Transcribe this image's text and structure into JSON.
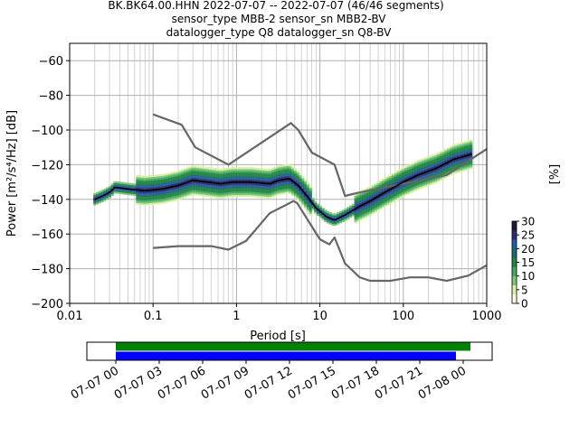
{
  "header": {
    "line1": "BK.BK64.00.HHN   2022-07-07 -- 2022-07-07  (46/46 segments)",
    "line2": "sensor_type MBB-2 sensor_sn MBB2-BV",
    "line3": "datalogger_type Q8 datalogger_sn Q8-BV"
  },
  "chart_data": [
    {
      "type": "heatmap",
      "xlabel": "Period [s]",
      "ylabel": "Power [m²/s⁴/Hz] [dB]",
      "x_scale": "log",
      "xlim": [
        0.01,
        1000
      ],
      "ylim": [
        -200,
        -50
      ],
      "xticks": [
        0.01,
        0.1,
        1,
        10,
        100,
        1000
      ],
      "xtick_labels": [
        "0.01",
        "0.1",
        "1",
        "10",
        "100",
        "1000"
      ],
      "yticks": [
        -60,
        -80,
        -100,
        -120,
        -140,
        -160,
        -180,
        -200
      ],
      "grid": true,
      "series": [
        {
          "name": "",
          "color": "#666666",
          "points": [
            [
              0.1,
              -91
            ],
            [
              0.22,
              -97
            ],
            [
              0.32,
              -110
            ],
            [
              0.8,
              -120
            ],
            [
              4.5,
              -96
            ],
            [
              5.5,
              -100
            ],
            [
              8,
              -113
            ],
            [
              15,
              -120
            ],
            [
              20,
              -138
            ],
            [
              30,
              -136
            ],
            [
              330,
              -126
            ],
            [
              1000,
              -111
            ]
          ]
        },
        {
          "name": "",
          "color": "#666666",
          "points": [
            [
              0.1,
              -168
            ],
            [
              0.2,
              -167
            ],
            [
              0.5,
              -167
            ],
            [
              0.8,
              -169
            ],
            [
              1.3,
              -164
            ],
            [
              2.5,
              -148
            ],
            [
              4,
              -143
            ],
            [
              4.8,
              -141
            ],
            [
              5.3,
              -142
            ],
            [
              10,
              -163
            ],
            [
              13,
              -166
            ],
            [
              15,
              -162
            ],
            [
              20,
              -177
            ],
            [
              30,
              -185
            ],
            [
              40,
              -187
            ],
            [
              70,
              -187
            ],
            [
              120,
              -185
            ],
            [
              200,
              -185
            ],
            [
              330,
              -187
            ],
            [
              600,
              -184
            ],
            [
              1000,
              -178
            ]
          ]
        },
        {
          "name": "",
          "color": "#000000",
          "points": [
            [
              0.02,
              -140
            ],
            [
              0.025,
              -138
            ],
            [
              0.03,
              -136
            ],
            [
              0.035,
              -133
            ],
            [
              0.05,
              -134
            ],
            [
              0.08,
              -135
            ],
            [
              0.13,
              -134
            ],
            [
              0.2,
              -132
            ],
            [
              0.3,
              -129
            ],
            [
              0.45,
              -130
            ],
            [
              0.65,
              -131
            ],
            [
              0.9,
              -130
            ],
            [
              1.5,
              -130
            ],
            [
              2.5,
              -131
            ],
            [
              3.2,
              -129
            ],
            [
              4.3,
              -128
            ],
            [
              5.5,
              -132
            ],
            [
              7,
              -138
            ],
            [
              9,
              -145
            ],
            [
              12,
              -150
            ],
            [
              15,
              -152
            ],
            [
              20,
              -149
            ],
            [
              30,
              -144
            ],
            [
              40,
              -141
            ],
            [
              60,
              -136
            ],
            [
              100,
              -130
            ],
            [
              150,
              -126
            ],
            [
              250,
              -122
            ],
            [
              400,
              -117
            ],
            [
              650,
              -114
            ]
          ]
        }
      ],
      "colorbar": {
        "label": "[%]",
        "min": 0,
        "max": 30,
        "ticks": [
          0,
          5,
          10,
          15,
          20,
          25,
          30
        ],
        "colors": [
          "#ffffe5",
          "#d9f0a3",
          "#78c679",
          "#41ab5d",
          "#238443",
          "#1d6c6c",
          "#225ea8",
          "#2d2d6e",
          "#1a1a3a"
        ]
      }
    },
    {
      "type": "bar",
      "title": "",
      "x_type": "time",
      "xlim": [
        "2022-07-06 22:00",
        "2022-07-08 02:00"
      ],
      "xtick_labels": [
        "07-07 00",
        "07-07 03",
        "07-07 06",
        "07-07 09",
        "07-07 12",
        "07-07 15",
        "07-07 18",
        "07-07 21",
        "07-08 00"
      ],
      "series": [
        {
          "color": "#008000",
          "start": "2022-07-07 00:00",
          "end": "2022-07-08 00:30"
        },
        {
          "color": "#0000ff",
          "start": "2022-07-07 00:00",
          "end": "2022-07-07 23:30"
        }
      ]
    }
  ]
}
